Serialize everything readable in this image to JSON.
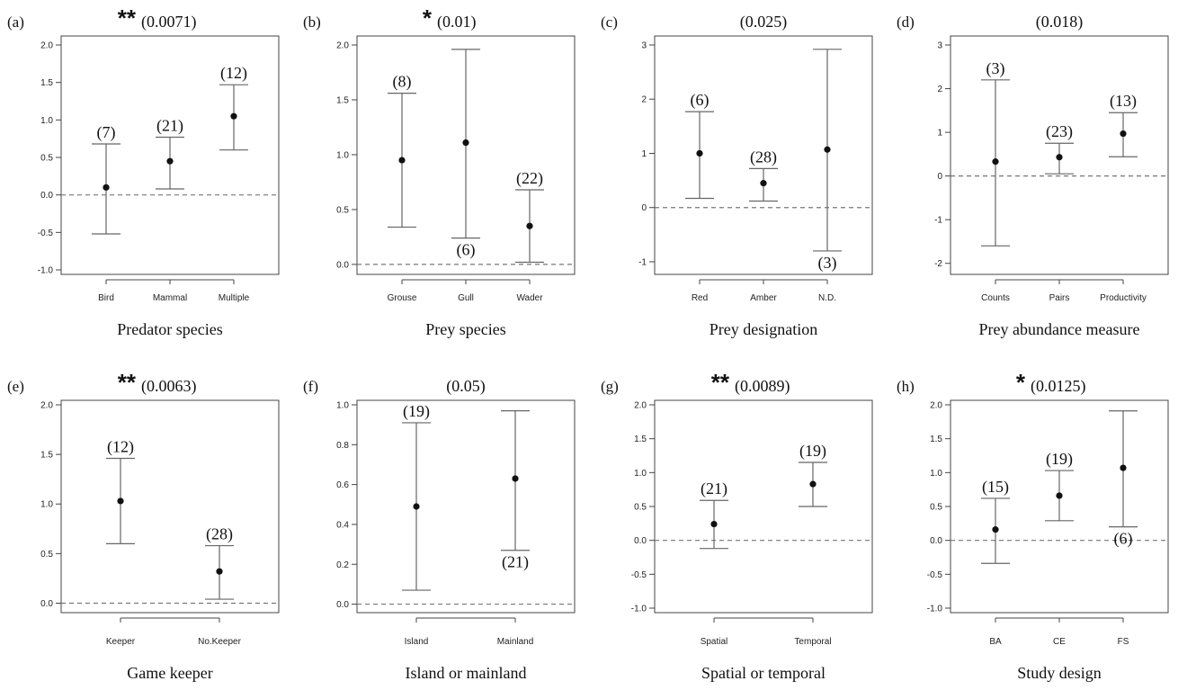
{
  "chart_data": [
    {
      "type": "scatter",
      "panel": "(a)",
      "stars": "**",
      "pvalue": "(0.0071)",
      "xlabel": "Predator species",
      "ylim": [
        -1.0,
        2.0
      ],
      "yticks": [
        "-1.0",
        "-0.5",
        "0.0",
        "0.5",
        "1.0",
        "1.5",
        "2.0"
      ],
      "ytick_values": [
        -1.0,
        -0.5,
        0.0,
        0.5,
        1.0,
        1.5,
        2.0
      ],
      "categories": [
        "Bird",
        "Mammal",
        "Multiple"
      ],
      "values": [
        0.1,
        0.45,
        1.05
      ],
      "lower": [
        -0.52,
        0.08,
        0.6
      ],
      "upper": [
        0.68,
        0.77,
        1.47
      ],
      "n_labels": [
        "(7)",
        "(21)",
        "(12)"
      ],
      "n_pos": [
        "above",
        "above",
        "above"
      ]
    },
    {
      "type": "scatter",
      "panel": "(b)",
      "stars": "*",
      "pvalue": "(0.01)",
      "xlabel": "Prey species",
      "ylim": [
        -0.05,
        2.0
      ],
      "yticks": [
        "0.0",
        "0.5",
        "1.0",
        "1.5",
        "2.0"
      ],
      "ytick_values": [
        0.0,
        0.5,
        1.0,
        1.5,
        2.0
      ],
      "categories": [
        "Grouse",
        "Gull",
        "Wader"
      ],
      "values": [
        0.95,
        1.11,
        0.35
      ],
      "lower": [
        0.34,
        0.24,
        0.02
      ],
      "upper": [
        1.56,
        1.96,
        0.68
      ],
      "n_labels": [
        "(8)",
        "(6)",
        "(22)"
      ],
      "n_pos": [
        "above",
        "below",
        "above"
      ]
    },
    {
      "type": "scatter",
      "panel": "(c)",
      "stars": "",
      "pvalue": "(0.025)",
      "xlabel": "Prey designation",
      "ylim": [
        -1.15,
        3.0
      ],
      "yticks": [
        "-1",
        "0",
        "1",
        "2",
        "3"
      ],
      "ytick_values": [
        -1,
        0,
        1,
        2,
        3
      ],
      "categories": [
        "Red",
        "Amber",
        "N.D."
      ],
      "values": [
        1.0,
        0.45,
        1.07
      ],
      "lower": [
        0.17,
        0.12,
        -0.8
      ],
      "upper": [
        1.77,
        0.72,
        2.92
      ],
      "n_labels": [
        "(6)",
        "(28)",
        "(3)"
      ],
      "n_pos": [
        "above",
        "above",
        "below"
      ]
    },
    {
      "type": "scatter",
      "panel": "(d)",
      "stars": "",
      "pvalue": "(0.018)",
      "xlabel": "Prey abundance measure",
      "ylim": [
        -2.15,
        3.0
      ],
      "yticks": [
        "-2",
        "-1",
        "0",
        "1",
        "2",
        "3"
      ],
      "ytick_values": [
        -2,
        -1,
        0,
        1,
        2,
        3
      ],
      "categories": [
        "Counts",
        "Pairs",
        "Productivity"
      ],
      "values": [
        0.33,
        0.43,
        0.97
      ],
      "lower": [
        -1.6,
        0.05,
        0.44
      ],
      "upper": [
        2.2,
        0.75,
        1.45
      ],
      "n_labels": [
        "(3)",
        "(23)",
        "(13)"
      ],
      "n_pos": [
        "above",
        "above",
        "above"
      ]
    },
    {
      "type": "scatter",
      "panel": "(e)",
      "stars": "**",
      "pvalue": "(0.0063)",
      "xlabel": "Game keeper",
      "ylim": [
        -0.05,
        2.0
      ],
      "yticks": [
        "0.0",
        "0.5",
        "1.0",
        "1.5",
        "2.0"
      ],
      "ytick_values": [
        0.0,
        0.5,
        1.0,
        1.5,
        2.0
      ],
      "categories": [
        "Keeper",
        "No.Keeper"
      ],
      "values": [
        1.03,
        0.32
      ],
      "lower": [
        0.6,
        0.04
      ],
      "upper": [
        1.46,
        0.58
      ],
      "n_labels": [
        "(12)",
        "(28)"
      ],
      "n_pos": [
        "above",
        "above"
      ]
    },
    {
      "type": "scatter",
      "panel": "(f)",
      "stars": "",
      "pvalue": "(0.05)",
      "xlabel": "Island or mainland",
      "ylim": [
        -0.02,
        1.0
      ],
      "yticks": [
        "0.0",
        "0.2",
        "0.4",
        "0.6",
        "0.8",
        "1.0"
      ],
      "ytick_values": [
        0.0,
        0.2,
        0.4,
        0.6,
        0.8,
        1.0
      ],
      "categories": [
        "Island",
        "Mainland"
      ],
      "values": [
        0.49,
        0.63
      ],
      "lower": [
        0.07,
        0.27
      ],
      "upper": [
        0.91,
        0.97
      ],
      "n_labels": [
        "(19)",
        "(21)"
      ],
      "n_pos": [
        "above",
        "below"
      ]
    },
    {
      "type": "scatter",
      "panel": "(g)",
      "stars": "**",
      "pvalue": "(0.0089)",
      "xlabel": "Spatial or temporal",
      "ylim": [
        -1.0,
        2.0
      ],
      "yticks": [
        "-1.0",
        "-0.5",
        "0.0",
        "0.5",
        "1.0",
        "1.5",
        "2.0"
      ],
      "ytick_values": [
        -1.0,
        -0.5,
        0.0,
        0.5,
        1.0,
        1.5,
        2.0
      ],
      "categories": [
        "Spatial",
        "Temporal"
      ],
      "values": [
        0.24,
        0.83
      ],
      "lower": [
        -0.12,
        0.5
      ],
      "upper": [
        0.59,
        1.15
      ],
      "n_labels": [
        "(21)",
        "(19)"
      ],
      "n_pos": [
        "above",
        "above"
      ]
    },
    {
      "type": "scatter",
      "panel": "(h)",
      "stars": "*",
      "pvalue": "(0.0125)",
      "xlabel": "Study design",
      "ylim": [
        -1.0,
        2.0
      ],
      "yticks": [
        "-1.0",
        "-0.5",
        "0.0",
        "0.5",
        "1.0",
        "1.5",
        "2.0"
      ],
      "ytick_values": [
        -1.0,
        -0.5,
        0.0,
        0.5,
        1.0,
        1.5,
        2.0
      ],
      "categories": [
        "BA",
        "CE",
        "FS"
      ],
      "values": [
        0.16,
        0.66,
        1.07
      ],
      "lower": [
        -0.34,
        0.29,
        0.2
      ],
      "upper": [
        0.62,
        1.03,
        1.91
      ],
      "n_labels": [
        "(15)",
        "(19)",
        "(6)"
      ],
      "n_pos": [
        "above",
        "above",
        "below"
      ]
    }
  ]
}
